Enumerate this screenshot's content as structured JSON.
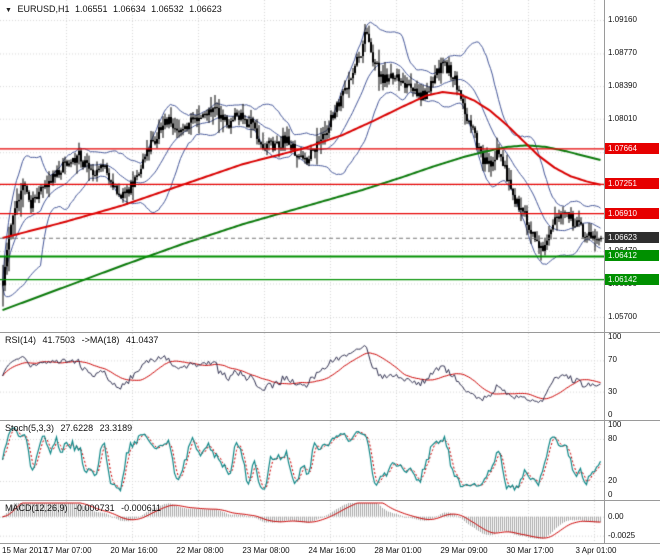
{
  "window": {
    "symbol_timeframe": "EURUSD,H1",
    "open": "1.06551",
    "high": "1.06634",
    "low": "1.06532",
    "close": "1.06623"
  },
  "colors": {
    "grid": "#d8d8d8",
    "resistance": "#e60000",
    "support": "#009000",
    "close_tag": "#2e2e2e",
    "candle_up": "#ffffff",
    "candle_down": "#000000",
    "candle_border": "#000000",
    "bollinger": "#46589a",
    "ma_fast": "#d90000",
    "ma_slow": "#0b7a0b",
    "rsi_line": "#303050",
    "rsi_ma": "#cc0000",
    "stoch_k": "#108888",
    "stoch_d": "#cc0000",
    "macd_hist": "#a8a8a8",
    "macd_signal": "#cc0000"
  },
  "chart_data": {
    "type": "candlestick",
    "symbol": "EURUSD",
    "timeframe": "H1",
    "ohlc": {
      "open": 1.06551,
      "high": 1.06634,
      "low": 1.06532,
      "close": 1.06623
    },
    "y_ticks": [
      "1.09160",
      "1.08770",
      "1.08390",
      "1.08010",
      "1.07620",
      "1.07240",
      "1.06860",
      "1.06470",
      "1.06090",
      "1.05700"
    ],
    "x_labels": [
      "15 Mar 2017",
      "17 Mar 07:00",
      "20 Mar 16:00",
      "22 Mar 08:00",
      "23 Mar 08:00",
      "24 Mar 16:00",
      "28 Mar 01:00",
      "29 Mar 09:00",
      "30 Mar 17:00",
      "3 Apr 01:00"
    ],
    "levels": {
      "resistance": [
        1.07664,
        1.07251,
        1.0691
      ],
      "support": [
        1.06412,
        1.06142
      ],
      "current": 1.06623
    },
    "candles_count": 300,
    "price_path": [
      [
        0,
        1.0612
      ],
      [
        3,
        1.0668
      ],
      [
        6,
        1.0695
      ],
      [
        10,
        1.073
      ],
      [
        14,
        1.0702
      ],
      [
        20,
        1.0718
      ],
      [
        26,
        1.0736
      ],
      [
        32,
        1.0752
      ],
      [
        38,
        1.0758
      ],
      [
        44,
        1.0736
      ],
      [
        50,
        1.0745
      ],
      [
        56,
        1.0722
      ],
      [
        60,
        1.0712
      ],
      [
        66,
        1.0728
      ],
      [
        72,
        1.076
      ],
      [
        78,
        1.0788
      ],
      [
        83,
        1.0801
      ],
      [
        88,
        1.0788
      ],
      [
        94,
        1.0797
      ],
      [
        100,
        1.0808
      ],
      [
        106,
        1.0812
      ],
      [
        112,
        1.0796
      ],
      [
        118,
        1.0804
      ],
      [
        124,
        1.0795
      ],
      [
        130,
        1.0773
      ],
      [
        136,
        1.0766
      ],
      [
        142,
        1.0779
      ],
      [
        148,
        1.0757
      ],
      [
        152,
        1.0752
      ],
      [
        158,
        1.0773
      ],
      [
        164,
        1.08
      ],
      [
        170,
        1.0828
      ],
      [
        175,
        1.0856
      ],
      [
        179,
        1.088
      ],
      [
        181,
        1.0902
      ],
      [
        184,
        1.0878
      ],
      [
        187,
        1.086
      ],
      [
        191,
        1.0846
      ],
      [
        196,
        1.0855
      ],
      [
        201,
        1.0842
      ],
      [
        206,
        1.083
      ],
      [
        211,
        1.0826
      ],
      [
        215,
        1.0846
      ],
      [
        219,
        1.0864
      ],
      [
        224,
        1.0855
      ],
      [
        228,
        1.0835
      ],
      [
        232,
        1.0804
      ],
      [
        236,
        1.0778
      ],
      [
        240,
        1.075
      ],
      [
        244,
        1.0748
      ],
      [
        247,
        1.0762
      ],
      [
        251,
        1.074
      ],
      [
        255,
        1.0712
      ],
      [
        259,
        1.0696
      ],
      [
        263,
        1.0678
      ],
      [
        267,
        1.0656
      ],
      [
        270,
        1.065
      ],
      [
        274,
        1.0676
      ],
      [
        278,
        1.069
      ],
      [
        282,
        1.0688
      ],
      [
        286,
        1.0678
      ],
      [
        290,
        1.067
      ],
      [
        294,
        1.0664
      ],
      [
        299,
        1.0662
      ]
    ],
    "ma_fast_path": [
      [
        0,
        1.0662
      ],
      [
        30,
        1.068
      ],
      [
        60,
        1.07
      ],
      [
        90,
        1.0724
      ],
      [
        120,
        1.0748
      ],
      [
        150,
        1.0766
      ],
      [
        170,
        1.0782
      ],
      [
        185,
        1.0798
      ],
      [
        200,
        1.0815
      ],
      [
        212,
        1.0828
      ],
      [
        220,
        1.0832
      ],
      [
        228,
        1.083
      ],
      [
        236,
        1.0822
      ],
      [
        244,
        1.081
      ],
      [
        252,
        1.0794
      ],
      [
        260,
        1.0776
      ],
      [
        268,
        1.0758
      ],
      [
        276,
        1.0744
      ],
      [
        284,
        1.0734
      ],
      [
        292,
        1.0728
      ],
      [
        299,
        1.0724
      ]
    ],
    "ma_slow_path": [
      [
        0,
        1.0578
      ],
      [
        30,
        1.0604
      ],
      [
        60,
        1.063
      ],
      [
        90,
        1.0655
      ],
      [
        120,
        1.0678
      ],
      [
        150,
        1.0698
      ],
      [
        180,
        1.0718
      ],
      [
        200,
        1.0733
      ],
      [
        215,
        1.0745
      ],
      [
        230,
        1.0756
      ],
      [
        242,
        1.0763
      ],
      [
        252,
        1.0768
      ],
      [
        262,
        1.077
      ],
      [
        272,
        1.0768
      ],
      [
        282,
        1.0763
      ],
      [
        292,
        1.0757
      ],
      [
        299,
        1.0753
      ]
    ],
    "bollinger": {
      "period": 20,
      "deviation": 2
    },
    "indicators": {
      "rsi": {
        "title": "RSI(14)",
        "value": "41.7503",
        "ma_title": "->MA(18)",
        "ma_value": "41.0437",
        "period": 14,
        "ma_period": 18,
        "ticks": [
          "100",
          "70",
          "30",
          "0"
        ],
        "levels": [
          70,
          30
        ],
        "range": [
          0,
          100
        ]
      },
      "stoch": {
        "title": "Stoch(5,3,3)",
        "k_value": "27.6228",
        "d_value": "23.3189",
        "ticks": [
          "100",
          "80",
          "20",
          "0"
        ],
        "levels": [
          80,
          20
        ],
        "range": [
          0,
          100
        ]
      },
      "macd": {
        "title": "MACD(12,26,9)",
        "macd_value": "-0.000731",
        "signal_value": "-0.000611",
        "ticks": [
          "0.00",
          "-0.0025"
        ],
        "tick_values": [
          0,
          -0.0025
        ],
        "range": [
          0.0018,
          -0.0032
        ]
      }
    }
  }
}
